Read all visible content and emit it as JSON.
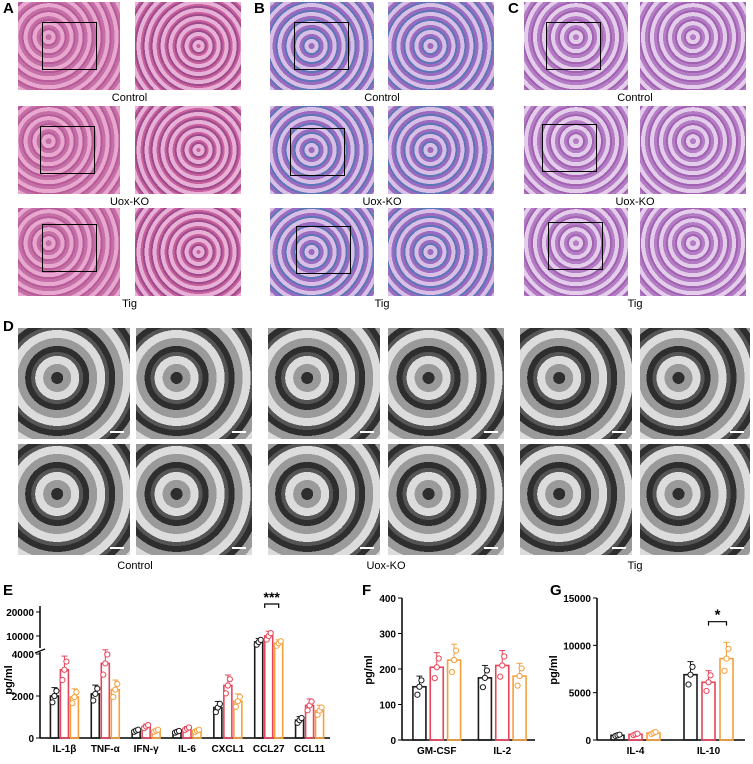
{
  "panels": {
    "A": "A",
    "B": "B",
    "C": "C",
    "D": "D",
    "E": "E",
    "F": "F",
    "G": "G"
  },
  "histology_labels": [
    "Control",
    "Uox-KO",
    "Tig"
  ],
  "em_labels": [
    "Control",
    "Uox-KO",
    "Tig"
  ],
  "colors": {
    "control": "#1a1a1a",
    "uox_ko": "#e8455a",
    "tig": "#f4a03c"
  },
  "chart_data": [
    {
      "type": "bar",
      "panel": "E",
      "ylabel": "pg/ml",
      "categories": [
        "IL-1β",
        "TNF-α",
        "IFN-γ",
        "IL-6",
        "CXCL1",
        "CCL27",
        "CCL11"
      ],
      "y_ticks_lower": [
        "0",
        "2000",
        "4000"
      ],
      "y_ticks_upper": [
        "10000",
        "20000"
      ],
      "axis_break": true,
      "series": [
        {
          "values": [
            2000,
            2100,
            350,
            300,
            1450,
            7500,
            850
          ]
        },
        {
          "values": [
            3250,
            3550,
            550,
            450,
            2500,
            10000,
            1550
          ]
        },
        {
          "values": [
            1950,
            2300,
            350,
            350,
            1750,
            7000,
            1300
          ]
        }
      ],
      "significance": {
        "category": "CCL27",
        "label": "***"
      }
    },
    {
      "type": "bar",
      "panel": "F",
      "ylabel": "pg/ml",
      "categories": [
        "GM-CSF",
        "IL-2"
      ],
      "y_ticks": [
        "0",
        "100",
        "200",
        "300",
        "400"
      ],
      "ylim": [
        0,
        400
      ],
      "series": [
        {
          "values": [
            150,
            175
          ]
        },
        {
          "values": [
            205,
            210
          ]
        },
        {
          "values": [
            225,
            180
          ]
        }
      ]
    },
    {
      "type": "bar",
      "panel": "G",
      "ylabel": "pg/ml",
      "categories": [
        "IL-4",
        "IL-10"
      ],
      "y_ticks": [
        "0",
        "5000",
        "10000",
        "15000"
      ],
      "ylim": [
        0,
        15000
      ],
      "series": [
        {
          "values": [
            500,
            6900
          ]
        },
        {
          "values": [
            600,
            6100
          ]
        },
        {
          "values": [
            750,
            8600
          ]
        }
      ],
      "significance": {
        "category": "IL-10",
        "label": "*"
      }
    }
  ]
}
